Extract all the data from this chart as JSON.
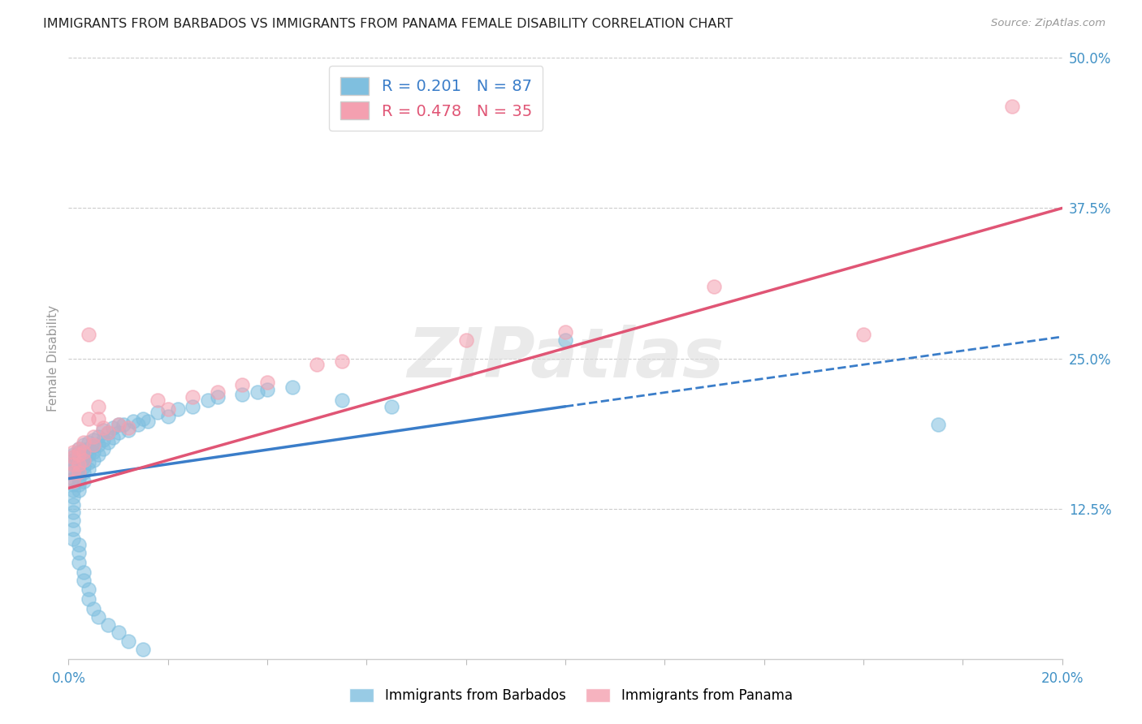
{
  "title": "IMMIGRANTS FROM BARBADOS VS IMMIGRANTS FROM PANAMA FEMALE DISABILITY CORRELATION CHART",
  "source": "Source: ZipAtlas.com",
  "ylabel": "Female Disability",
  "xlim": [
    0.0,
    0.2
  ],
  "ylim": [
    0.0,
    0.5
  ],
  "barbados_R": 0.201,
  "barbados_N": 87,
  "panama_R": 0.478,
  "panama_N": 35,
  "barbados_color": "#7fbfdf",
  "panama_color": "#f4a0b0",
  "trendline_barbados_color": "#3a7dc9",
  "trendline_panama_color": "#e05575",
  "watermark": "ZIPatlas",
  "trendline_b_x0": 0.0,
  "trendline_b_y0": 0.15,
  "trendline_b_x1": 0.1,
  "trendline_b_y1": 0.21,
  "trendline_b_x2": 0.2,
  "trendline_b_y2": 0.268,
  "trendline_p_x0": 0.0,
  "trendline_p_y0": 0.142,
  "trendline_p_x1": 0.2,
  "trendline_p_y1": 0.375,
  "barbados_x": [
    0.001,
    0.001,
    0.001,
    0.001,
    0.001,
    0.001,
    0.001,
    0.001,
    0.001,
    0.001,
    0.002,
    0.002,
    0.002,
    0.002,
    0.002,
    0.002,
    0.002,
    0.002,
    0.002,
    0.003,
    0.003,
    0.003,
    0.003,
    0.003,
    0.003,
    0.003,
    0.004,
    0.004,
    0.004,
    0.004,
    0.004,
    0.005,
    0.005,
    0.005,
    0.005,
    0.006,
    0.006,
    0.006,
    0.007,
    0.007,
    0.007,
    0.008,
    0.008,
    0.009,
    0.009,
    0.01,
    0.01,
    0.011,
    0.012,
    0.013,
    0.014,
    0.015,
    0.016,
    0.018,
    0.02,
    0.022,
    0.025,
    0.028,
    0.03,
    0.035,
    0.038,
    0.04,
    0.045,
    0.055,
    0.065,
    0.1,
    0.175,
    0.001,
    0.001,
    0.001,
    0.001,
    0.001,
    0.002,
    0.002,
    0.002,
    0.003,
    0.003,
    0.004,
    0.004,
    0.005,
    0.006,
    0.008,
    0.01,
    0.012,
    0.015
  ],
  "barbados_y": [
    0.17,
    0.168,
    0.165,
    0.162,
    0.158,
    0.155,
    0.15,
    0.145,
    0.14,
    0.135,
    0.175,
    0.172,
    0.168,
    0.165,
    0.16,
    0.155,
    0.15,
    0.145,
    0.14,
    0.178,
    0.174,
    0.17,
    0.165,
    0.16,
    0.155,
    0.148,
    0.18,
    0.175,
    0.17,
    0.163,
    0.158,
    0.182,
    0.177,
    0.172,
    0.165,
    0.185,
    0.178,
    0.17,
    0.19,
    0.182,
    0.175,
    0.188,
    0.18,
    0.192,
    0.184,
    0.195,
    0.188,
    0.195,
    0.19,
    0.198,
    0.195,
    0.2,
    0.198,
    0.205,
    0.202,
    0.208,
    0.21,
    0.215,
    0.218,
    0.22,
    0.222,
    0.224,
    0.226,
    0.215,
    0.21,
    0.265,
    0.195,
    0.128,
    0.122,
    0.115,
    0.108,
    0.1,
    0.095,
    0.088,
    0.08,
    0.072,
    0.065,
    0.058,
    0.05,
    0.042,
    0.035,
    0.028,
    0.022,
    0.015,
    0.008
  ],
  "panama_x": [
    0.001,
    0.001,
    0.001,
    0.001,
    0.001,
    0.002,
    0.002,
    0.002,
    0.002,
    0.003,
    0.003,
    0.003,
    0.004,
    0.004,
    0.005,
    0.005,
    0.006,
    0.006,
    0.007,
    0.008,
    0.01,
    0.012,
    0.018,
    0.02,
    0.025,
    0.03,
    0.035,
    0.04,
    0.05,
    0.055,
    0.08,
    0.1,
    0.13,
    0.16,
    0.19
  ],
  "panama_y": [
    0.172,
    0.168,
    0.162,
    0.155,
    0.148,
    0.175,
    0.17,
    0.162,
    0.155,
    0.18,
    0.172,
    0.165,
    0.27,
    0.2,
    0.185,
    0.178,
    0.21,
    0.2,
    0.192,
    0.188,
    0.195,
    0.192,
    0.215,
    0.208,
    0.218,
    0.222,
    0.228,
    0.23,
    0.245,
    0.248,
    0.265,
    0.272,
    0.31,
    0.27,
    0.46
  ]
}
